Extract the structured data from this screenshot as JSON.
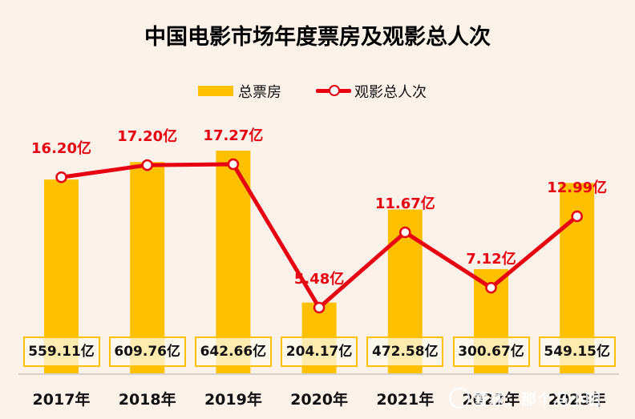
{
  "title": "中国电影市场年度票房及观影总人次",
  "legend": {
    "bar_label": "总票房",
    "line_label": "观影总人次"
  },
  "colors": {
    "bar": "#ffc000",
    "line": "#e60012",
    "background": "#fcf2e9"
  },
  "years": [
    "2017年",
    "2018年",
    "2019年",
    "2020年",
    "2021年",
    "2022年",
    "2023年"
  ],
  "box_office_labels": [
    "559.11亿",
    "609.76亿",
    "642.66亿",
    "204.17亿",
    "472.58亿",
    "300.67亿",
    "549.15亿"
  ],
  "attendance_labels": [
    "16.20亿",
    "17.20亿",
    "17.27亿",
    "5.48亿",
    "11.67亿",
    "7.12亿",
    "12.99亿"
  ],
  "watermark": "雪球：那个冯小明",
  "chart_data": {
    "type": "bar+line",
    "title": "中国电影市场年度票房及观影总人次",
    "categories": [
      "2017年",
      "2018年",
      "2019年",
      "2020年",
      "2021年",
      "2022年",
      "2023年"
    ],
    "series": [
      {
        "name": "总票房",
        "type": "bar",
        "unit": "亿元",
        "values": [
          559.11,
          609.76,
          642.66,
          204.17,
          472.58,
          300.67,
          549.15
        ]
      },
      {
        "name": "观影总人次",
        "type": "line",
        "unit": "亿人次",
        "values": [
          16.2,
          17.2,
          17.27,
          5.48,
          11.67,
          7.12,
          12.99
        ]
      }
    ],
    "xlabel": "",
    "ylabel": "",
    "legend_position": "top",
    "grid": false
  }
}
